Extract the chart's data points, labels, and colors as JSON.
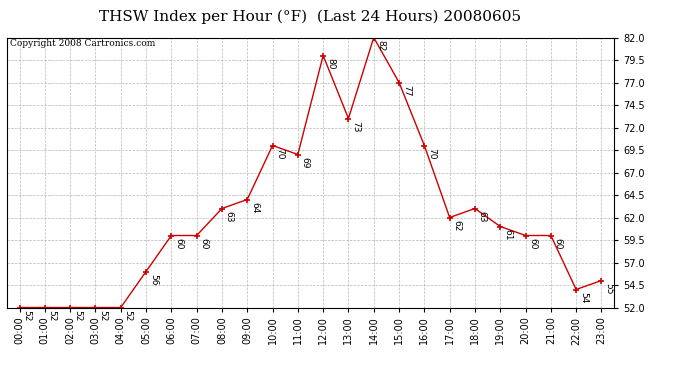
{
  "title": "THSW Index per Hour (°F)  (Last 24 Hours) 20080605",
  "copyright": "Copyright 2008 Cartronics.com",
  "hours": [
    "00:00",
    "01:00",
    "02:00",
    "03:00",
    "04:00",
    "05:00",
    "06:00",
    "07:00",
    "08:00",
    "09:00",
    "10:00",
    "11:00",
    "12:00",
    "13:00",
    "14:00",
    "15:00",
    "16:00",
    "17:00",
    "18:00",
    "19:00",
    "20:00",
    "21:00",
    "22:00",
    "23:00"
  ],
  "values": [
    52,
    52,
    52,
    52,
    52,
    56,
    60,
    60,
    63,
    64,
    70,
    69,
    80,
    73,
    82,
    77,
    70,
    62,
    63,
    61,
    60,
    60,
    54,
    55
  ],
  "ylim_min": 52.0,
  "ylim_max": 82.0,
  "yticks": [
    52.0,
    54.5,
    57.0,
    59.5,
    62.0,
    64.5,
    67.0,
    69.5,
    72.0,
    74.5,
    77.0,
    79.5,
    82.0
  ],
  "line_color": "#cc0000",
  "marker_color": "#cc0000",
  "bg_color": "#ffffff",
  "grid_color": "#b0b0b0",
  "title_fontsize": 11,
  "label_fontsize": 6.5,
  "tick_fontsize": 7,
  "copyright_fontsize": 6.5
}
